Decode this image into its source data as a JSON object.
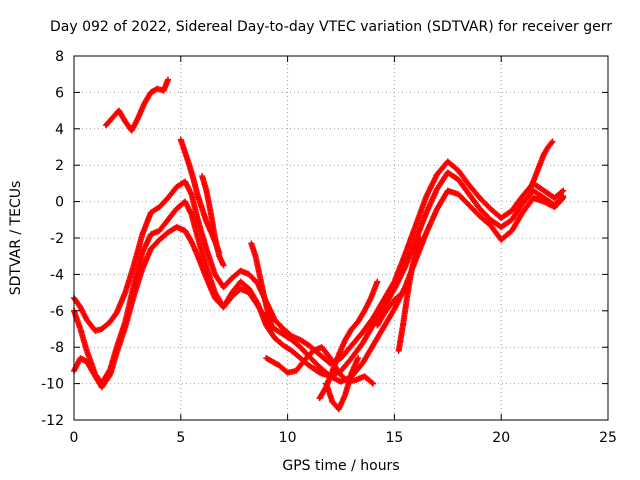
{
  "chart_data": {
    "type": "scatter",
    "title": "Day 092 of 2022, Sidereal Day-to-day VTEC variation (SDTVAR) for receiver gerr",
    "xlabel": "GPS time / hours",
    "ylabel": "SDTVAR / TECUs",
    "xlim": [
      0,
      25
    ],
    "ylim": [
      -12,
      8
    ],
    "xticks": [
      0,
      5,
      10,
      15,
      20,
      25
    ],
    "yticks": [
      -12,
      -10,
      -8,
      -6,
      -4,
      -2,
      0,
      2,
      4,
      6,
      8
    ],
    "grid": true,
    "legend": "none",
    "marker": "plus",
    "color": "#ff0000",
    "series": [
      {
        "x": [
          0.0,
          0.3,
          0.6,
          1.0,
          1.3,
          1.7,
          2.0,
          2.4,
          2.8,
          3.2,
          3.6,
          4.0,
          4.4,
          4.8,
          5.2,
          5.5,
          5.8,
          6.2,
          6.6,
          7.0,
          7.4,
          7.8,
          8.2,
          8.6,
          9.0,
          9.4,
          9.8,
          10.2,
          10.6,
          11.0,
          11.5,
          12.0,
          12.5,
          13.0,
          13.5,
          14.0,
          14.5,
          15.0,
          15.5,
          16.0,
          16.5,
          17.0,
          17.5,
          18.0,
          18.5,
          19.0,
          19.5,
          20.0,
          20.5,
          21.0,
          21.5,
          22.0,
          22.5,
          22.9
        ],
        "y": [
          -5.3,
          -5.8,
          -6.5,
          -7.1,
          -7.0,
          -6.6,
          -6.1,
          -5.0,
          -3.5,
          -1.8,
          -0.6,
          -0.3,
          0.2,
          0.8,
          1.1,
          0.4,
          -1.0,
          -2.6,
          -4.0,
          -4.7,
          -4.2,
          -3.8,
          -4.0,
          -4.5,
          -5.5,
          -6.5,
          -7.0,
          -7.4,
          -7.6,
          -7.9,
          -8.4,
          -8.9,
          -8.6,
          -7.9,
          -7.2,
          -6.4,
          -5.4,
          -4.4,
          -2.9,
          -1.3,
          0.3,
          1.5,
          2.2,
          1.7,
          0.9,
          0.2,
          -0.4,
          -0.9,
          -0.5,
          0.3,
          1.0,
          0.6,
          0.2,
          0.6
        ]
      },
      {
        "x": [
          0.0,
          0.3,
          0.6,
          1.0,
          1.3,
          1.7,
          2.0,
          2.4,
          2.8,
          3.2,
          3.6,
          4.0,
          4.4,
          4.8,
          5.2,
          5.5,
          5.8,
          6.2,
          6.6,
          7.0,
          7.4,
          7.8,
          8.2,
          8.6,
          9.0,
          9.4,
          9.8,
          10.2,
          10.6,
          11.0,
          11.5,
          12.0,
          12.5,
          13.0,
          13.5,
          14.0,
          14.5,
          15.0,
          15.5,
          16.0,
          16.5,
          17.0,
          17.5,
          18.0,
          18.5,
          19.0,
          19.5,
          20.0,
          20.5,
          21.0,
          21.5,
          22.0,
          22.5,
          22.9
        ],
        "y": [
          -6.0,
          -7.0,
          -8.2,
          -9.5,
          -10.0,
          -9.2,
          -8.0,
          -6.6,
          -4.6,
          -2.8,
          -1.8,
          -1.6,
          -1.0,
          -0.4,
          0.0,
          -0.7,
          -2.0,
          -3.6,
          -5.0,
          -5.8,
          -5.0,
          -4.4,
          -4.8,
          -5.6,
          -6.8,
          -7.5,
          -7.9,
          -8.2,
          -8.6,
          -9.0,
          -9.4,
          -9.6,
          -9.3,
          -8.6,
          -7.8,
          -6.8,
          -5.8,
          -4.8,
          -3.6,
          -2.1,
          -0.6,
          0.7,
          1.6,
          1.2,
          0.4,
          -0.4,
          -1.0,
          -1.4,
          -1.0,
          -0.1,
          0.6,
          0.2,
          -0.2,
          0.3
        ]
      },
      {
        "x": [
          0.0,
          0.3,
          0.6,
          1.0,
          1.3,
          1.7,
          2.0,
          2.4,
          2.8,
          3.2,
          3.6,
          4.0,
          4.4,
          4.8,
          5.2,
          5.5,
          5.8,
          6.2,
          6.6,
          7.0,
          7.4,
          7.8,
          8.2,
          8.6,
          9.0,
          9.4,
          9.8,
          10.2,
          10.6,
          11.0,
          11.5,
          12.0,
          12.5,
          13.0,
          13.5,
          14.0,
          14.5,
          15.0,
          15.5,
          16.0,
          16.5,
          17.0,
          17.5,
          18.0,
          18.5,
          19.0,
          19.5,
          20.0,
          20.5,
          21.0,
          21.5,
          22.0,
          22.5,
          22.9
        ],
        "y": [
          -9.3,
          -8.6,
          -8.8,
          -9.6,
          -10.2,
          -9.5,
          -8.3,
          -6.9,
          -5.2,
          -3.7,
          -2.6,
          -2.1,
          -1.7,
          -1.4,
          -1.6,
          -2.2,
          -3.0,
          -4.2,
          -5.3,
          -5.8,
          -5.2,
          -4.8,
          -5.0,
          -5.7,
          -6.5,
          -7.0,
          -7.3,
          -7.6,
          -8.0,
          -8.5,
          -9.1,
          -9.6,
          -9.9,
          -9.6,
          -8.9,
          -7.9,
          -6.9,
          -5.9,
          -4.7,
          -3.2,
          -1.7,
          -0.4,
          0.6,
          0.4,
          -0.2,
          -0.8,
          -1.3,
          -2.1,
          -1.6,
          -0.6,
          0.2,
          0.0,
          -0.3,
          0.2
        ]
      },
      {
        "x": [
          1.5,
          1.8,
          2.1,
          2.4,
          2.7,
          3.0,
          3.3,
          3.6,
          3.9,
          4.2,
          4.4
        ],
        "y": [
          4.2,
          4.6,
          5.0,
          4.4,
          3.9,
          4.6,
          5.4,
          6.0,
          6.2,
          6.1,
          6.7
        ]
      },
      {
        "x": [
          5.0,
          5.2,
          5.4,
          5.6,
          5.8,
          6.0,
          6.2,
          6.5,
          6.8
        ],
        "y": [
          3.4,
          2.7,
          2.0,
          1.2,
          0.3,
          -0.4,
          -1.1,
          -1.9,
          -2.8
        ]
      },
      {
        "x": [
          6.0,
          6.2,
          6.4,
          6.6,
          6.8,
          7.0
        ],
        "y": [
          1.4,
          0.6,
          -0.6,
          -2.0,
          -3.0,
          -3.5
        ]
      },
      {
        "x": [
          9.0,
          9.3,
          9.6,
          10.0,
          10.4,
          10.8,
          11.2,
          11.6,
          12.0,
          12.4,
          12.8,
          13.2,
          13.6,
          14.0
        ],
        "y": [
          -8.6,
          -8.8,
          -9.0,
          -9.4,
          -9.3,
          -8.7,
          -8.2,
          -8.0,
          -8.6,
          -9.4,
          -9.9,
          -9.8,
          -9.6,
          -10.0
        ]
      },
      {
        "x": [
          11.5,
          11.8,
          12.1,
          12.4,
          12.7,
          13.0,
          13.3,
          13.6,
          13.9,
          14.2
        ],
        "y": [
          -10.8,
          -10.2,
          -9.3,
          -8.4,
          -7.6,
          -7.0,
          -6.6,
          -6.0,
          -5.3,
          -4.4
        ]
      },
      {
        "x": [
          11.8,
          12.1,
          12.4,
          12.7,
          13.0,
          13.3
        ],
        "y": [
          -10.0,
          -11.0,
          -11.4,
          -10.6,
          -9.4,
          -8.6
        ]
      },
      {
        "x": [
          8.3,
          8.5,
          8.7,
          8.9,
          9.1,
          9.3
        ],
        "y": [
          -2.3,
          -3.0,
          -4.1,
          -5.2,
          -6.2,
          -7.0
        ]
      },
      {
        "x": [
          14.2,
          14.6,
          15.0,
          15.4,
          15.6
        ],
        "y": [
          -6.8,
          -6.0,
          -5.4,
          -5.0,
          -4.6
        ]
      },
      {
        "x": [
          15.2,
          15.4,
          15.6,
          15.8,
          16.0,
          16.2
        ],
        "y": [
          -8.2,
          -6.8,
          -5.2,
          -3.8,
          -2.8,
          -2.0
        ]
      },
      {
        "x": [
          21.4,
          21.6,
          21.8,
          22.0,
          22.2,
          22.4
        ],
        "y": [
          0.8,
          1.4,
          2.0,
          2.6,
          3.0,
          3.3
        ]
      }
    ]
  }
}
